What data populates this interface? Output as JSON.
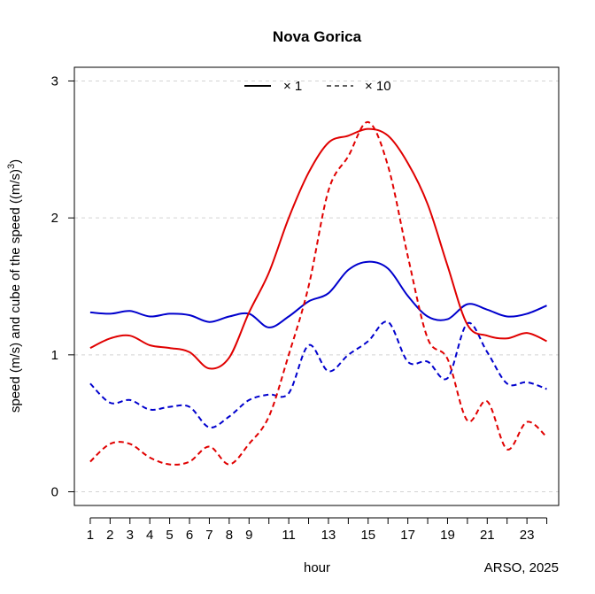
{
  "chart_data": {
    "type": "line",
    "title": "Nova Gorica",
    "xlabel": "hour",
    "ylabel_prefix": "speed (m/s) and cube of the speed ((m/s)",
    "ylabel_superscript": "3",
    "ylabel_suffix": ")",
    "credit": "ARSO, 2025",
    "xlim": [
      0.2,
      24.6
    ],
    "ylim": [
      -0.1,
      3.1
    ],
    "x_ticks": [
      1,
      2,
      3,
      4,
      5,
      6,
      7,
      8,
      9,
      11,
      13,
      15,
      17,
      19,
      21,
      23
    ],
    "y_ticks": [
      0,
      1,
      2,
      3
    ],
    "legend": {
      "position": "top",
      "entries": [
        {
          "label": "× 1",
          "style": "solid"
        },
        {
          "label": "×  10",
          "style": "dashed"
        }
      ]
    },
    "x": [
      1,
      2,
      3,
      4,
      5,
      6,
      7,
      8,
      9,
      10,
      11,
      12,
      13,
      14,
      15,
      16,
      17,
      18,
      19,
      20,
      21,
      22,
      23,
      24
    ],
    "series": [
      {
        "color": "#0000cd",
        "style": "solid",
        "values": [
          1.31,
          1.3,
          1.32,
          1.28,
          1.3,
          1.29,
          1.24,
          1.28,
          1.3,
          1.2,
          1.28,
          1.39,
          1.45,
          1.62,
          1.68,
          1.63,
          1.43,
          1.28,
          1.26,
          1.37,
          1.33,
          1.28,
          1.3,
          1.36
        ]
      },
      {
        "color": "#0000cd",
        "style": "dashed",
        "values": [
          0.79,
          0.65,
          0.67,
          0.6,
          0.62,
          0.62,
          0.47,
          0.55,
          0.67,
          0.71,
          0.72,
          1.07,
          0.88,
          1.0,
          1.1,
          1.24,
          0.95,
          0.95,
          0.83,
          1.23,
          1.02,
          0.79,
          0.8,
          0.75
        ]
      },
      {
        "color": "#e00000",
        "style": "solid",
        "values": [
          1.05,
          1.12,
          1.14,
          1.07,
          1.05,
          1.02,
          0.9,
          0.98,
          1.31,
          1.6,
          2.0,
          2.33,
          2.55,
          2.6,
          2.65,
          2.6,
          2.4,
          2.1,
          1.65,
          1.22,
          1.14,
          1.12,
          1.16,
          1.1
        ]
      },
      {
        "color": "#e00000",
        "style": "dashed",
        "values": [
          0.22,
          0.35,
          0.35,
          0.25,
          0.2,
          0.22,
          0.33,
          0.2,
          0.35,
          0.55,
          1.0,
          1.5,
          2.2,
          2.45,
          2.7,
          2.38,
          1.72,
          1.12,
          0.97,
          0.52,
          0.66,
          0.31,
          0.51,
          0.4
        ]
      }
    ]
  }
}
